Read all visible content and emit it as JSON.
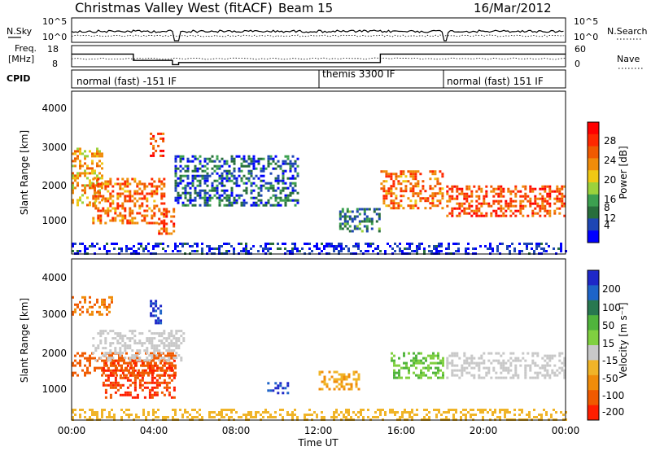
{
  "header": {
    "station": "Christmas Valley West (fitACF)",
    "beam": "Beam 15",
    "date": "16/Mar/2012"
  },
  "noise_panel": {
    "left_label": "N.Sky",
    "right_label": "N.Search",
    "left_ticks": [
      "10^5",
      "10^0"
    ],
    "right_ticks": [
      "10^5",
      "10^0"
    ]
  },
  "freq_panel": {
    "left_label_1": "Freq.",
    "left_label_2": "[MHz]",
    "right_label": "Nave",
    "left_ticks": [
      "18",
      "8"
    ],
    "right_ticks": [
      "60",
      "0"
    ]
  },
  "cpid_panel": {
    "label": "CPID",
    "modes": [
      "normal (fast) -151 IF",
      "themis 3300 IF",
      "normal (fast) 151 IF"
    ]
  },
  "x_axis": {
    "title": "Time UT",
    "ticks": [
      "00:00",
      "04:00",
      "08:00",
      "12:00",
      "16:00",
      "20:00",
      "00:00"
    ]
  },
  "power_panel": {
    "ylabel": "Slant Range [km]",
    "yticks": [
      "4000",
      "3000",
      "2000",
      "1000"
    ],
    "cbar_label": "Power [dB]",
    "cbar_ticks": [
      "28",
      "24",
      "20",
      "16",
      "12",
      "8",
      "4"
    ],
    "colors": [
      "#0000ff",
      "#1e46b4",
      "#286e3c",
      "#3ca050",
      "#9bd23c",
      "#f0c814",
      "#f08c0a",
      "#f05a00",
      "#ff2800",
      "#ff0000"
    ]
  },
  "velocity_panel": {
    "ylabel": "Slant Range [km]",
    "yticks": [
      "4000",
      "3000",
      "2000",
      "1000"
    ],
    "cbar_label": "Velocity [m s⁻¹]",
    "cbar_ticks": [
      "200",
      "100",
      "50",
      "15",
      "-15",
      "-50",
      "-100",
      "-200"
    ],
    "colors": [
      "#1e28c8",
      "#1e64c8",
      "#287850",
      "#50b43c",
      "#80d040",
      "#c8c8c8",
      "#f0b428",
      "#f08c0a",
      "#f05a00",
      "#ff1e00"
    ]
  },
  "chart_data": {
    "type": "heatmap",
    "title": "Christmas Valley West (fitACF) Beam 15 16/Mar/2012",
    "x_range_hours": [
      0,
      24
    ],
    "y_range_km": [
      180,
      4500
    ],
    "xlabel": "Time UT",
    "ylabel": "Slant Range [km]",
    "frequency_mhz": [
      {
        "start": 0,
        "end": 3,
        "value": 14
      },
      {
        "start": 3,
        "end": 4.9,
        "value": 11
      },
      {
        "start": 4.9,
        "end": 5.2,
        "value": 9
      },
      {
        "start": 5.2,
        "end": 15,
        "value": 10
      },
      {
        "start": 15,
        "end": 18,
        "value": 14
      },
      {
        "start": 18,
        "end": 24,
        "value": 14
      }
    ],
    "cpid_segments": [
      {
        "start": 0,
        "end": 12,
        "label": "normal (fast) -151 IF"
      },
      {
        "start": 12,
        "end": 18.1,
        "label": "themis 3300 IF"
      },
      {
        "start": 18.1,
        "end": 24,
        "label": "normal (fast) 151 IF"
      }
    ],
    "power_regions_db": [
      {
        "t": [
          0,
          1.5
        ],
        "range": [
          1500,
          3000
        ],
        "value": 20
      },
      {
        "t": [
          1,
          4.5
        ],
        "range": [
          1000,
          2200
        ],
        "value": 24
      },
      {
        "t": [
          3.8,
          4.5
        ],
        "range": [
          2800,
          3400
        ],
        "value": 26
      },
      {
        "t": [
          4.2,
          5
        ],
        "range": [
          700,
          1400
        ],
        "value": 26
      },
      {
        "t": [
          5,
          11
        ],
        "range": [
          1500,
          2800
        ],
        "value": 8
      },
      {
        "t": [
          13,
          15
        ],
        "range": [
          800,
          1400
        ],
        "value": 10
      },
      {
        "t": [
          15,
          18
        ],
        "range": [
          1400,
          2400
        ],
        "value": 24
      },
      {
        "t": [
          18.2,
          24
        ],
        "range": [
          1200,
          2000
        ],
        "value": 26
      }
    ],
    "velocity_regions_ms": [
      {
        "t": [
          0,
          2
        ],
        "range": [
          3000,
          3500
        ],
        "value": -100
      },
      {
        "t": [
          0,
          5
        ],
        "range": [
          1400,
          2000
        ],
        "value": -150
      },
      {
        "t": [
          1.5,
          5
        ],
        "range": [
          800,
          1800
        ],
        "value": -200
      },
      {
        "t": [
          1,
          5.5
        ],
        "range": [
          1800,
          2600
        ],
        "value": 0
      },
      {
        "t": [
          3.8,
          4.3
        ],
        "range": [
          2800,
          3400
        ],
        "value": 200
      },
      {
        "t": [
          9.5,
          10.5
        ],
        "range": [
          900,
          1200
        ],
        "value": 200
      },
      {
        "t": [
          12,
          14
        ],
        "range": [
          1000,
          1500
        ],
        "value": -50
      },
      {
        "t": [
          15.5,
          18
        ],
        "range": [
          1300,
          2000
        ],
        "value": 30
      },
      {
        "t": [
          18.2,
          24
        ],
        "range": [
          1300,
          2000
        ],
        "value": 0
      }
    ]
  }
}
